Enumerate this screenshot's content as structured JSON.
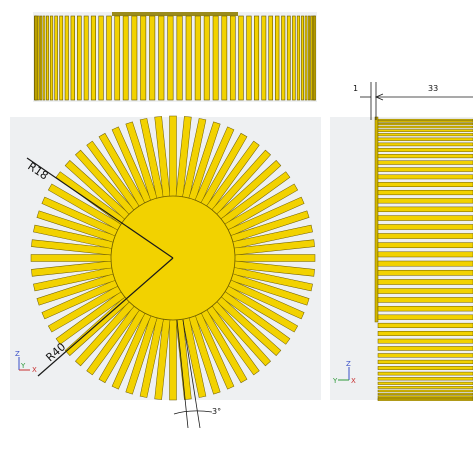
{
  "views": {
    "top": {
      "fin_count": 48
    },
    "front": {
      "fin_count": 60,
      "labels": {
        "inner_radius": "R18",
        "outer_radius": "R40",
        "fin_angle": "3°"
      },
      "axes": {
        "vertical": "Z",
        "horizontal": "X",
        "secondary": "Y"
      }
    },
    "side": {
      "labels": {
        "base_thickness": "1",
        "fin_length": "33"
      },
      "axes": {
        "vertical": "Z",
        "horizontal": "Y",
        "secondary": "X"
      }
    }
  },
  "colors": {
    "fin_fill": "#f2d200",
    "fin_stroke": "#6b5a00",
    "panel_bg": "#eef0f2",
    "line": "#1a1a1a",
    "axis_z": "#3a50c8",
    "axis_x": "#c83030",
    "axis_y": "#2f9a3a"
  }
}
